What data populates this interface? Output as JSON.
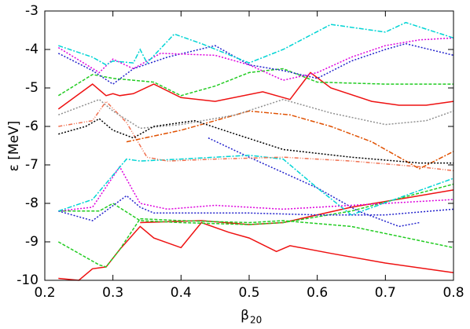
{
  "chart_data": {
    "type": "line",
    "xlabel": "β",
    "xlabel_subscript": "20",
    "ylabel": "ε [MeV]",
    "xlim": [
      0.2,
      0.8
    ],
    "xticks": [
      0.2,
      0.3,
      0.4,
      0.5,
      0.6,
      0.7,
      0.8
    ],
    "ylim": [
      -10,
      -3
    ],
    "yticks": [
      -10,
      -9,
      -8,
      -7,
      -6,
      -5,
      -4,
      -3
    ],
    "grid": false,
    "series": [
      {
        "color": "#ee1111",
        "dash": "none",
        "x": [
          0.22,
          0.27,
          0.29,
          0.3,
          0.31,
          0.33,
          0.36,
          0.4,
          0.45,
          0.52,
          0.56,
          0.59,
          0.62,
          0.68,
          0.72,
          0.76,
          0.8
        ],
        "values": [
          -5.55,
          -4.9,
          -5.2,
          -5.15,
          -5.2,
          -5.15,
          -4.9,
          -5.25,
          -5.35,
          -5.1,
          -5.3,
          -4.6,
          -5.0,
          -5.35,
          -5.45,
          -5.45,
          -5.35
        ]
      },
      {
        "color": "#ee1111",
        "dash": "none",
        "x": [
          0.22,
          0.25,
          0.27,
          0.29,
          0.31,
          0.34,
          0.36,
          0.4,
          0.43,
          0.47,
          0.5,
          0.54,
          0.56,
          0.62,
          0.7,
          0.8
        ],
        "values": [
          -9.95,
          -10,
          -9.7,
          -9.65,
          -9.2,
          -8.6,
          -8.9,
          -9.15,
          -8.5,
          -8.75,
          -8.9,
          -9.25,
          -9.1,
          -9.3,
          -9.55,
          -9.8
        ]
      },
      {
        "color": "#ee1111",
        "dash": "none",
        "x": [
          0.34,
          0.43,
          0.5,
          0.55,
          0.65,
          0.8
        ],
        "values": [
          -8.5,
          -8.45,
          -8.55,
          -8.5,
          -8.1,
          -7.65
        ]
      },
      {
        "color": "#22cc22",
        "dash": "4 2",
        "x": [
          0.22,
          0.27,
          0.3,
          0.33,
          0.36,
          0.4,
          0.45,
          0.5,
          0.55,
          0.6,
          0.7,
          0.8
        ],
        "values": [
          -5.2,
          -4.65,
          -4.75,
          -4.8,
          -4.85,
          -5.2,
          -4.95,
          -4.6,
          -4.5,
          -4.85,
          -4.9,
          -4.9
        ]
      },
      {
        "color": "#22cc22",
        "dash": "4 2",
        "x": [
          0.22,
          0.28,
          0.29,
          0.31,
          0.34,
          0.4,
          0.5,
          0.55,
          0.65,
          0.8
        ],
        "values": [
          -9.0,
          -9.6,
          -9.65,
          -9.2,
          -8.4,
          -8.45,
          -8.5,
          -8.45,
          -8.6,
          -9.15
        ]
      },
      {
        "color": "#22cc22",
        "dash": "4 2",
        "x": [
          0.22,
          0.28,
          0.3,
          0.34,
          0.4,
          0.5,
          0.55,
          0.65,
          0.8
        ],
        "values": [
          -8.2,
          -8.2,
          -8.0,
          -8.45,
          -8.5,
          -8.55,
          -8.5,
          -8.2,
          -7.5
        ]
      },
      {
        "color": "#2222cc",
        "dash": "2 2",
        "x": [
          0.22,
          0.27,
          0.3,
          0.33,
          0.38,
          0.45,
          0.5,
          0.55,
          0.6,
          0.65,
          0.7,
          0.73,
          0.8
        ],
        "values": [
          -4.1,
          -4.55,
          -4.9,
          -4.5,
          -4.2,
          -3.9,
          -4.4,
          -4.55,
          -4.75,
          -4.3,
          -4.0,
          -3.85,
          -4.15
        ]
      },
      {
        "color": "#2222cc",
        "dash": "2 2",
        "x": [
          0.22,
          0.27,
          0.32,
          0.34,
          0.36,
          0.4,
          0.5,
          0.6,
          0.7,
          0.8
        ],
        "values": [
          -8.2,
          -8.45,
          -7.8,
          -8.1,
          -8.25,
          -8.25,
          -8.25,
          -8.3,
          -8.3,
          -8.15
        ]
      },
      {
        "color": "#2222cc",
        "dash": "2 2",
        "x": [
          0.44,
          0.5,
          0.6,
          0.66,
          0.72,
          0.75
        ],
        "values": [
          -6.3,
          -6.8,
          -7.6,
          -8.2,
          -8.6,
          -8.5
        ]
      },
      {
        "color": "#dd00dd",
        "dash": "2 2",
        "x": [
          0.22,
          0.28,
          0.3,
          0.33,
          0.37,
          0.45,
          0.5,
          0.55,
          0.6,
          0.65,
          0.7,
          0.75,
          0.8
        ],
        "values": [
          -3.95,
          -4.6,
          -4.25,
          -4.5,
          -4.1,
          -4.15,
          -4.4,
          -4.8,
          -4.6,
          -4.2,
          -3.9,
          -3.75,
          -3.7
        ]
      },
      {
        "color": "#dd00dd",
        "dash": "2 2",
        "x": [
          0.22,
          0.27,
          0.31,
          0.34,
          0.38,
          0.45,
          0.55,
          0.65,
          0.8
        ],
        "values": [
          -8.2,
          -8.1,
          -7.05,
          -8.0,
          -8.15,
          -8.05,
          -8.15,
          -8.05,
          -7.9
        ]
      },
      {
        "color": "#00d4d4",
        "dash": "6 2 2 2",
        "x": [
          0.22,
          0.27,
          0.29,
          0.3,
          0.33,
          0.34,
          0.35,
          0.39,
          0.43,
          0.5,
          0.55,
          0.62,
          0.7,
          0.73,
          0.8
        ],
        "values": [
          -3.9,
          -4.2,
          -4.4,
          -4.3,
          -4.35,
          -4.0,
          -4.35,
          -3.6,
          -3.85,
          -4.35,
          -4.0,
          -3.35,
          -3.55,
          -3.3,
          -3.7
        ]
      },
      {
        "color": "#00d4d4",
        "dash": "6 2 2 2",
        "x": [
          0.22,
          0.27,
          0.32,
          0.34,
          0.4,
          0.45,
          0.5,
          0.55,
          0.6,
          0.65,
          0.8
        ],
        "values": [
          -8.2,
          -7.9,
          -6.85,
          -6.9,
          -6.85,
          -6.8,
          -6.75,
          -6.85,
          -7.6,
          -8.3,
          -7.35
        ]
      },
      {
        "color": "#f07050",
        "dash": "5 2 1 2 1 2",
        "x": [
          0.22,
          0.27,
          0.29,
          0.32,
          0.35,
          0.38,
          0.45,
          0.55,
          0.65,
          0.75,
          0.8
        ],
        "values": [
          -6.0,
          -5.85,
          -5.35,
          -5.9,
          -6.8,
          -6.9,
          -6.85,
          -6.8,
          -6.9,
          -7.05,
          -7.15
        ]
      },
      {
        "color": "#e05000",
        "dash": "6 2 2 2",
        "x": [
          0.32,
          0.4,
          0.5,
          0.56,
          0.62,
          0.68,
          0.75,
          0.8
        ],
        "values": [
          -6.4,
          -6.1,
          -5.6,
          -5.7,
          -6.0,
          -6.4,
          -7.1,
          -6.65
        ]
      },
      {
        "color": "#909090",
        "dash": "2 2",
        "x": [
          0.22,
          0.28,
          0.3,
          0.34,
          0.4,
          0.48,
          0.55,
          0.62,
          0.7,
          0.76,
          0.8
        ],
        "values": [
          -5.7,
          -5.3,
          -5.6,
          -6.05,
          -5.95,
          -5.7,
          -5.3,
          -5.65,
          -5.95,
          -5.85,
          -5.6
        ]
      },
      {
        "color": "#000000",
        "dash": "2 2",
        "x": [
          0.22,
          0.26,
          0.28,
          0.3,
          0.33,
          0.36,
          0.42,
          0.48,
          0.55,
          0.65,
          0.75,
          0.8
        ],
        "values": [
          -6.2,
          -6.0,
          -5.8,
          -6.1,
          -6.3,
          -6.0,
          -5.85,
          -6.2,
          -6.6,
          -6.8,
          -6.95,
          -6.95
        ]
      }
    ]
  }
}
